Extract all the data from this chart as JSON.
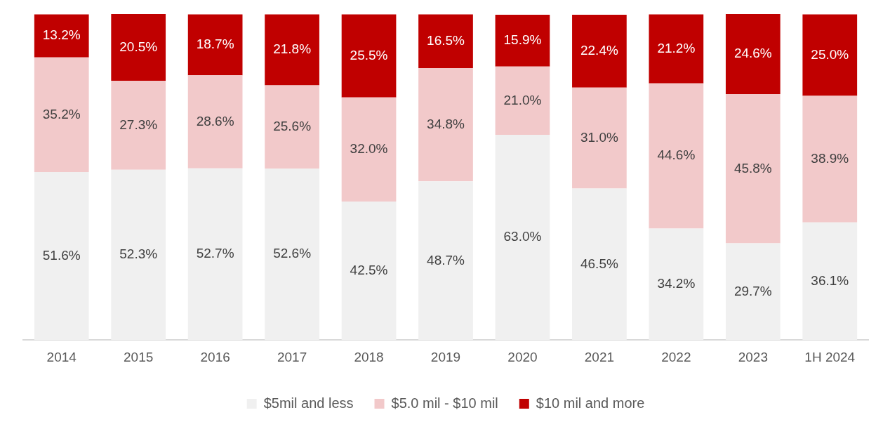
{
  "chart_data": {
    "type": "bar",
    "stacked": true,
    "legend": "bottom",
    "categories": [
      "2014",
      "2015",
      "2016",
      "2017",
      "2018",
      "2019",
      "2020",
      "2021",
      "2022",
      "2023",
      "1H 2024"
    ],
    "series": [
      {
        "name": "$5mil and less",
        "color": "#f0f0f0",
        "values": [
          51.6,
          52.3,
          52.7,
          52.6,
          42.5,
          48.7,
          63.0,
          46.5,
          34.2,
          29.7,
          36.1
        ],
        "value_labels": [
          "51.6%",
          "52.3%",
          "52.7%",
          "52.6%",
          "42.5%",
          "48.7%",
          "63.0%",
          "46.5%",
          "34.2%",
          "29.7%",
          "36.1%"
        ]
      },
      {
        "name": "$5.0 mil - $10 mil",
        "color": "#f2c9ca",
        "values": [
          35.2,
          27.3,
          28.6,
          25.6,
          32.0,
          34.8,
          21.0,
          31.0,
          44.6,
          45.8,
          38.9
        ],
        "value_labels": [
          "35.2%",
          "27.3%",
          "28.6%",
          "25.6%",
          "32.0%",
          "34.8%",
          "21.0%",
          "31.0%",
          "44.6%",
          "45.8%",
          "38.9%"
        ]
      },
      {
        "name": "$10 mil and more",
        "color": "#c00000",
        "values": [
          13.2,
          20.5,
          18.7,
          21.8,
          25.5,
          16.5,
          15.9,
          22.4,
          21.2,
          24.6,
          25.0
        ],
        "value_labels": [
          "13.2%",
          "20.5%",
          "18.7%",
          "21.8%",
          "25.5%",
          "16.5%",
          "15.9%",
          "22.4%",
          "21.2%",
          "24.6%",
          "25.0%"
        ]
      }
    ]
  }
}
